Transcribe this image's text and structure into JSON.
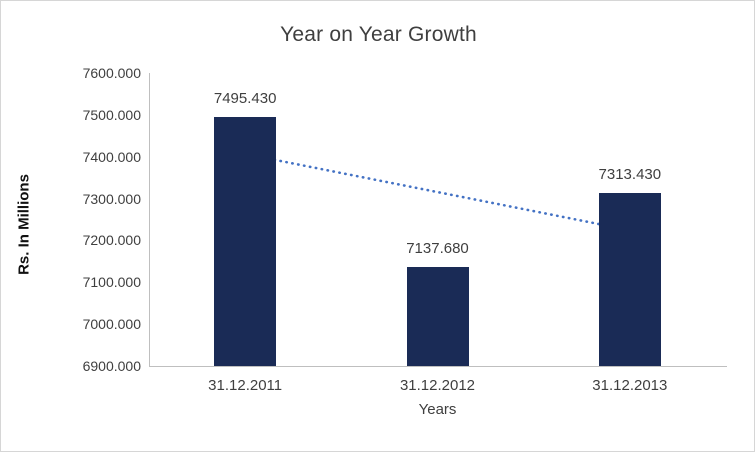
{
  "chart_data": {
    "type": "bar",
    "title": "Year on Year Growth",
    "categories": [
      "31.12.2011",
      "31.12.2012",
      "31.12.2013"
    ],
    "values": [
      7495.43,
      7137.68,
      7313.43
    ],
    "data_labels": [
      "7495.430",
      "7137.680",
      "7313.430"
    ],
    "xlabel": "Years",
    "ylabel": "Rs. In Millions",
    "ylim": [
      6900,
      7600
    ],
    "ytick_step": 100,
    "ytick_labels": [
      "6900.000",
      "7000.000",
      "7100.000",
      "7200.000",
      "7300.000",
      "7400.000",
      "7500.000",
      "7600.000"
    ],
    "grid": false,
    "legend": "none",
    "bar_color": "#1a2b56",
    "trendline": {
      "style": "dotted",
      "color": "#4472c4",
      "start_value": 7406.5,
      "end_value": 7224.5
    }
  }
}
